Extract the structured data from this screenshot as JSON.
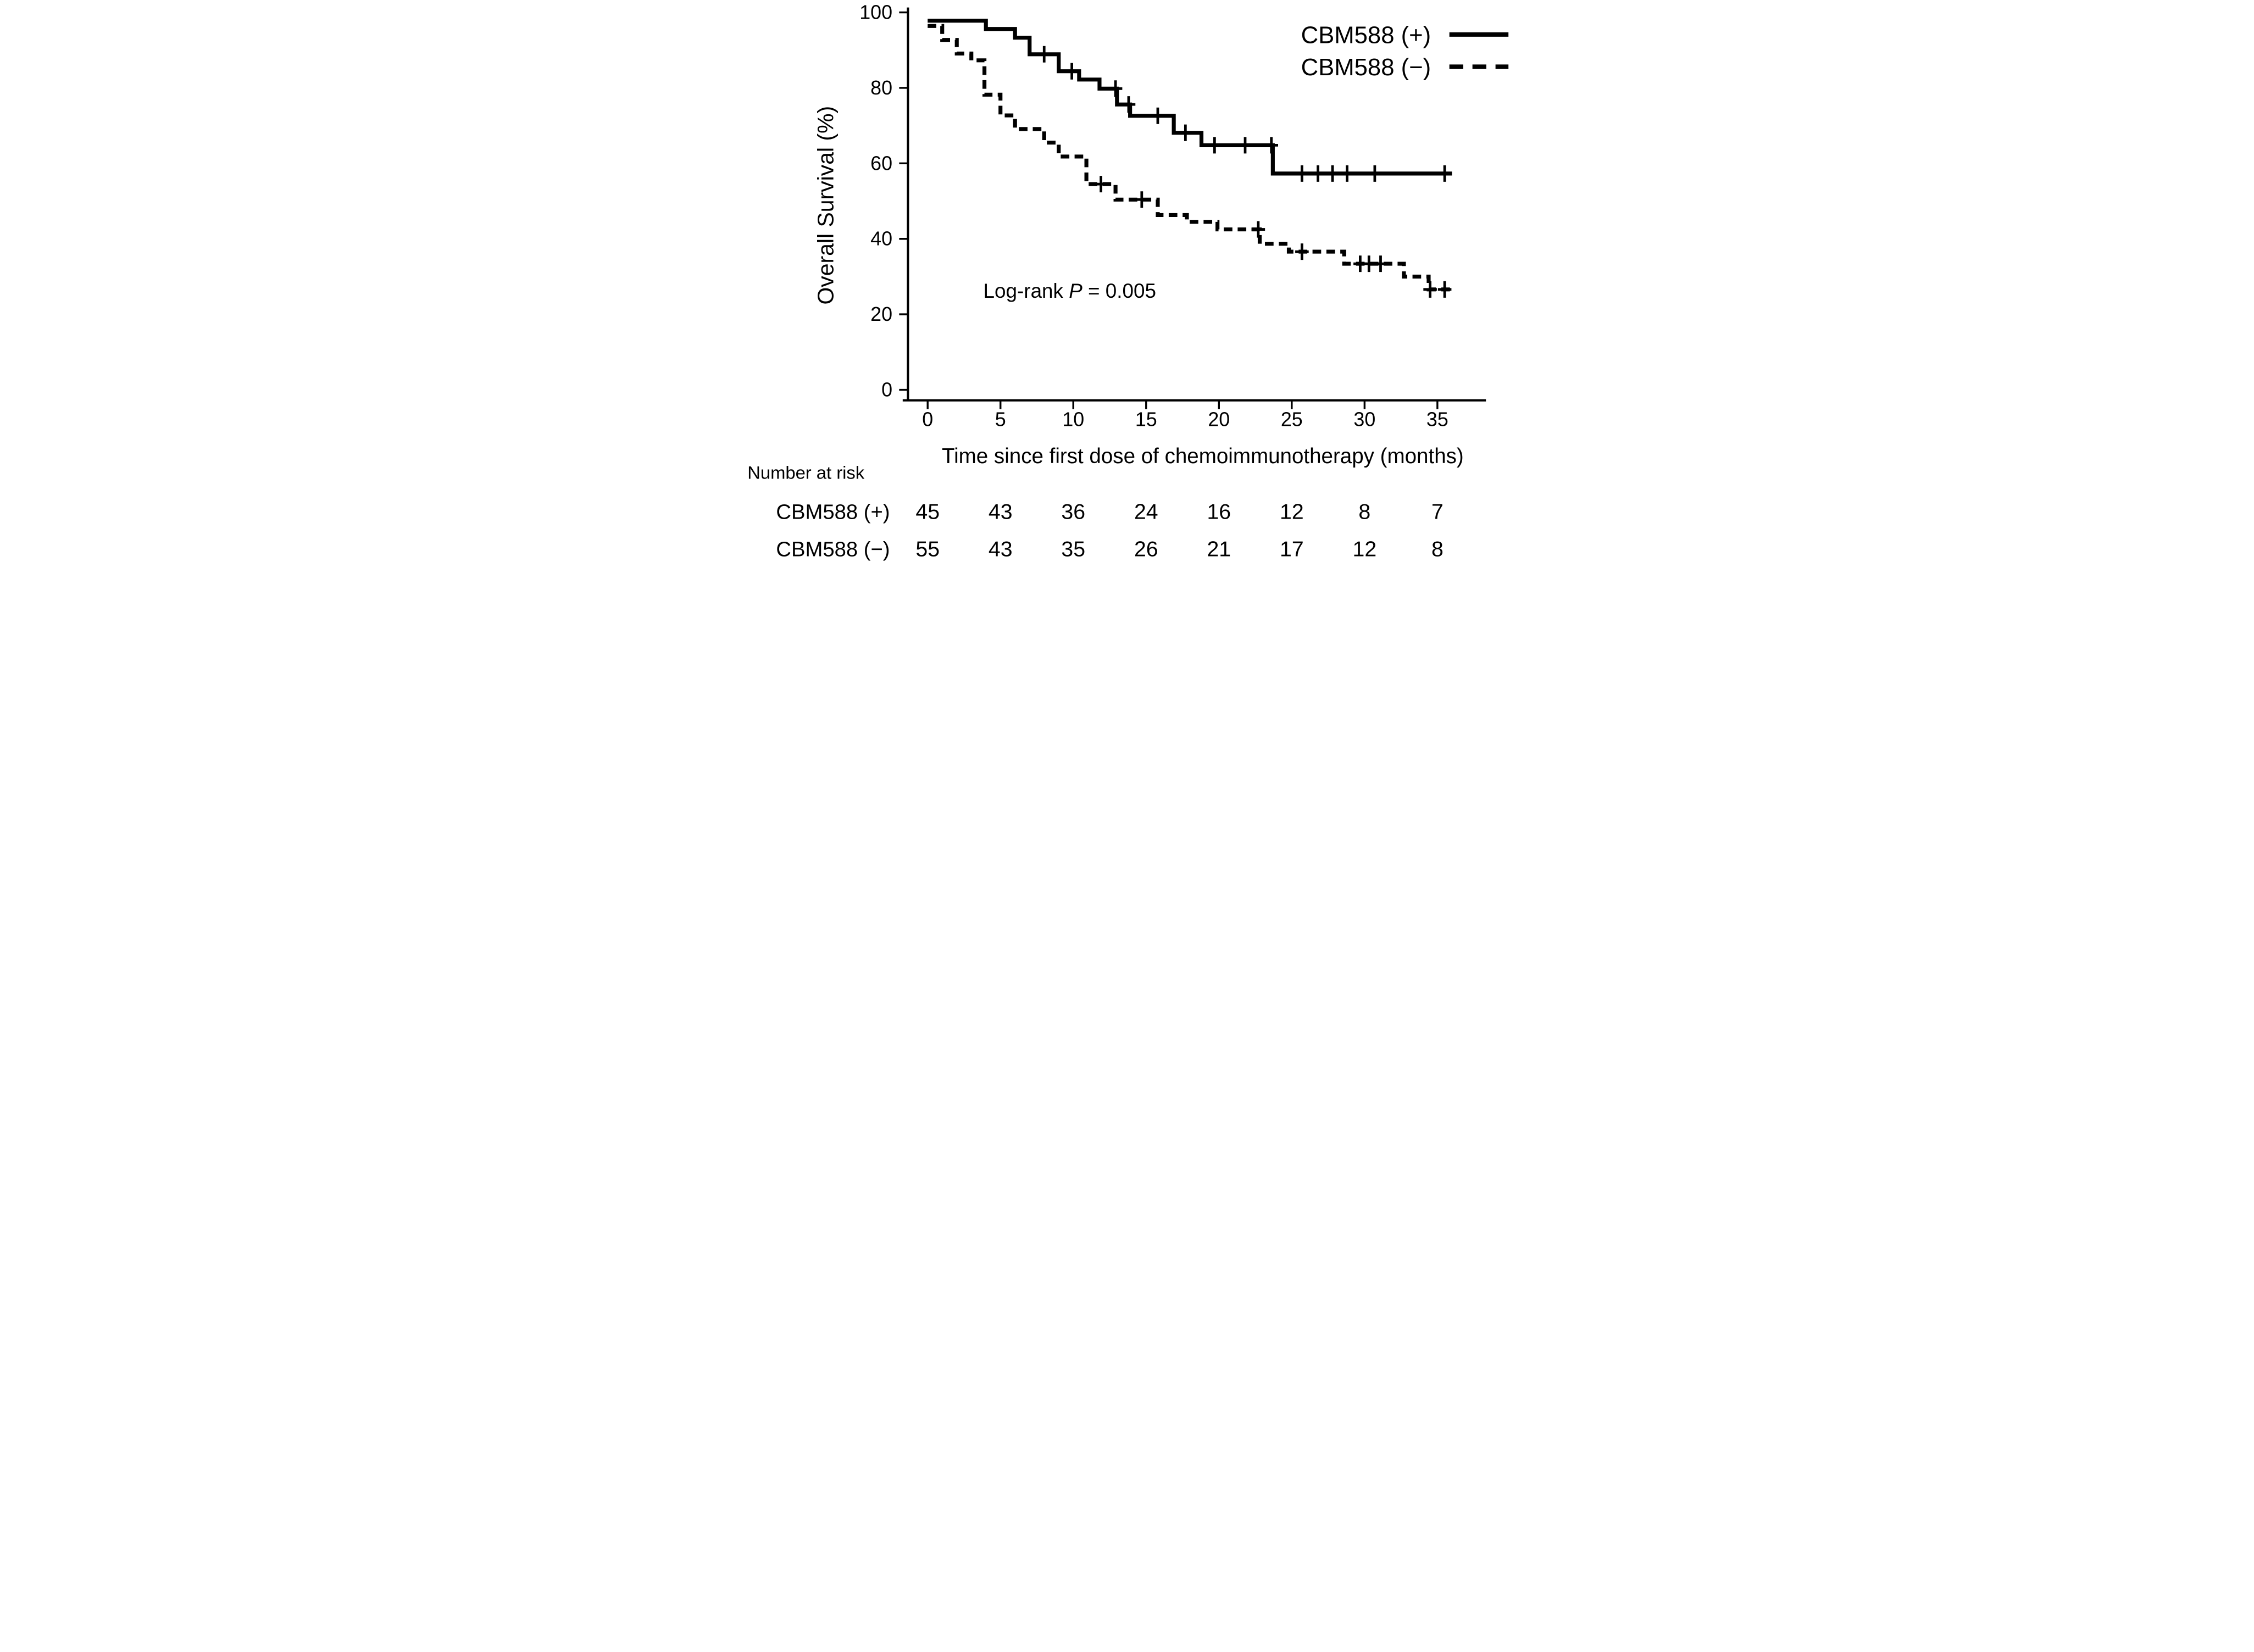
{
  "figure": {
    "background": "#ffffff",
    "ink_color": "#000000"
  },
  "chart_data": {
    "type": "line",
    "subtype": "kaplan-meier-step",
    "title": "",
    "xlabel": "Time since first dose of chemoimmunotherapy (months)",
    "ylabel": "Overall Survival (%)",
    "xlim": [
      0,
      36.6
    ],
    "ylim": [
      0,
      100
    ],
    "xticks": [
      0,
      5,
      10,
      15,
      20,
      25,
      30,
      35
    ],
    "yticks": [
      0,
      20,
      40,
      60,
      80,
      100
    ],
    "grid": false,
    "legend_position": "top-right",
    "annotation": {
      "prefix": "Log-rank ",
      "stat": "P",
      "suffix": " = 0.005"
    },
    "series": [
      {
        "name": "CBM588 (+)",
        "line_style": "solid",
        "steps": [
          [
            0,
            97.8
          ],
          [
            4,
            95.6
          ],
          [
            6,
            93.3
          ],
          [
            7,
            88.9
          ],
          [
            9,
            84.4
          ],
          [
            10.4,
            82.2
          ],
          [
            11.8,
            79.8
          ],
          [
            13,
            75.6
          ],
          [
            13.9,
            72.6
          ],
          [
            16.9,
            68.1
          ],
          [
            18.8,
            64.8
          ],
          [
            23.7,
            57.3
          ]
        ],
        "end_time": 36.0,
        "censor_times": [
          8,
          9.9,
          12.9,
          13.8,
          15.8,
          17.7,
          19.7,
          21.8,
          23.6,
          25.7,
          26.8,
          27.8,
          28.8,
          30.7,
          35.5
        ]
      },
      {
        "name": "CBM588 (−)",
        "line_style": "dashed",
        "steps": [
          [
            0,
            96.4
          ],
          [
            1,
            92.7
          ],
          [
            2,
            89.1
          ],
          [
            3,
            87.3
          ],
          [
            3.9,
            78.2
          ],
          [
            5,
            72.7
          ],
          [
            6,
            69.1
          ],
          [
            8,
            65.5
          ],
          [
            9,
            61.8
          ],
          [
            10.9,
            54.5
          ],
          [
            12.9,
            50.4
          ],
          [
            15.8,
            46.3
          ],
          [
            17.8,
            44.5
          ],
          [
            19.9,
            42.5
          ],
          [
            22.8,
            38.7
          ],
          [
            24.8,
            36.6
          ],
          [
            28.6,
            33.4
          ],
          [
            32.7,
            30.0
          ],
          [
            34.4,
            26.6
          ]
        ],
        "end_time": 36.0,
        "censor_times": [
          11.9,
          14.7,
          22.7,
          25.7,
          29.7,
          30.3,
          31.1,
          34.5,
          35.5
        ]
      }
    ],
    "risk_table": {
      "title": "Number at risk",
      "months": [
        0,
        5,
        10,
        15,
        20,
        25,
        30,
        35
      ],
      "rows": [
        {
          "label": "CBM588 (+)",
          "values": [
            45,
            43,
            36,
            24,
            16,
            12,
            8,
            7
          ]
        },
        {
          "label": "CBM588 (−)",
          "values": [
            55,
            43,
            35,
            26,
            21,
            17,
            12,
            8
          ]
        }
      ]
    }
  }
}
